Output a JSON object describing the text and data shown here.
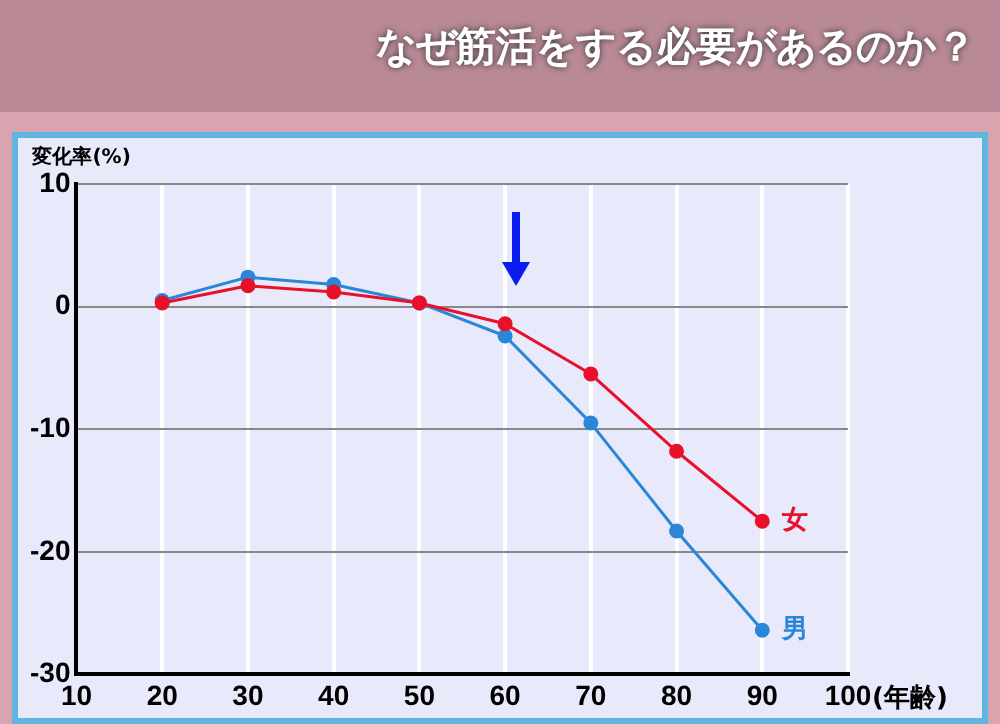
{
  "chart_data": {
    "type": "line",
    "title": "なぜ筋活をする必要があるのか？",
    "ylabel": "変化率(%)",
    "xlabel": "(年齢)",
    "x": [
      20,
      30,
      40,
      50,
      60,
      70,
      80,
      90
    ],
    "series": [
      {
        "name": "女",
        "color": "#e8102a",
        "values": [
          0.3,
          1.7,
          1.2,
          0.3,
          -1.4,
          -5.5,
          -11.8,
          -17.5
        ]
      },
      {
        "name": "男",
        "color": "#2a86d8",
        "values": [
          0.5,
          2.4,
          1.8,
          0.3,
          -2.4,
          -9.5,
          -18.3,
          -26.4
        ]
      }
    ],
    "xlim": [
      10,
      100
    ],
    "xticks": [
      10,
      20,
      30,
      40,
      50,
      60,
      70,
      80,
      90,
      100
    ],
    "ylim": [
      -30,
      10
    ],
    "yticks": [
      -30,
      -20,
      -10,
      0,
      10
    ],
    "grid": true,
    "legend": false,
    "marker": "circle",
    "line_style": "solid"
  }
}
